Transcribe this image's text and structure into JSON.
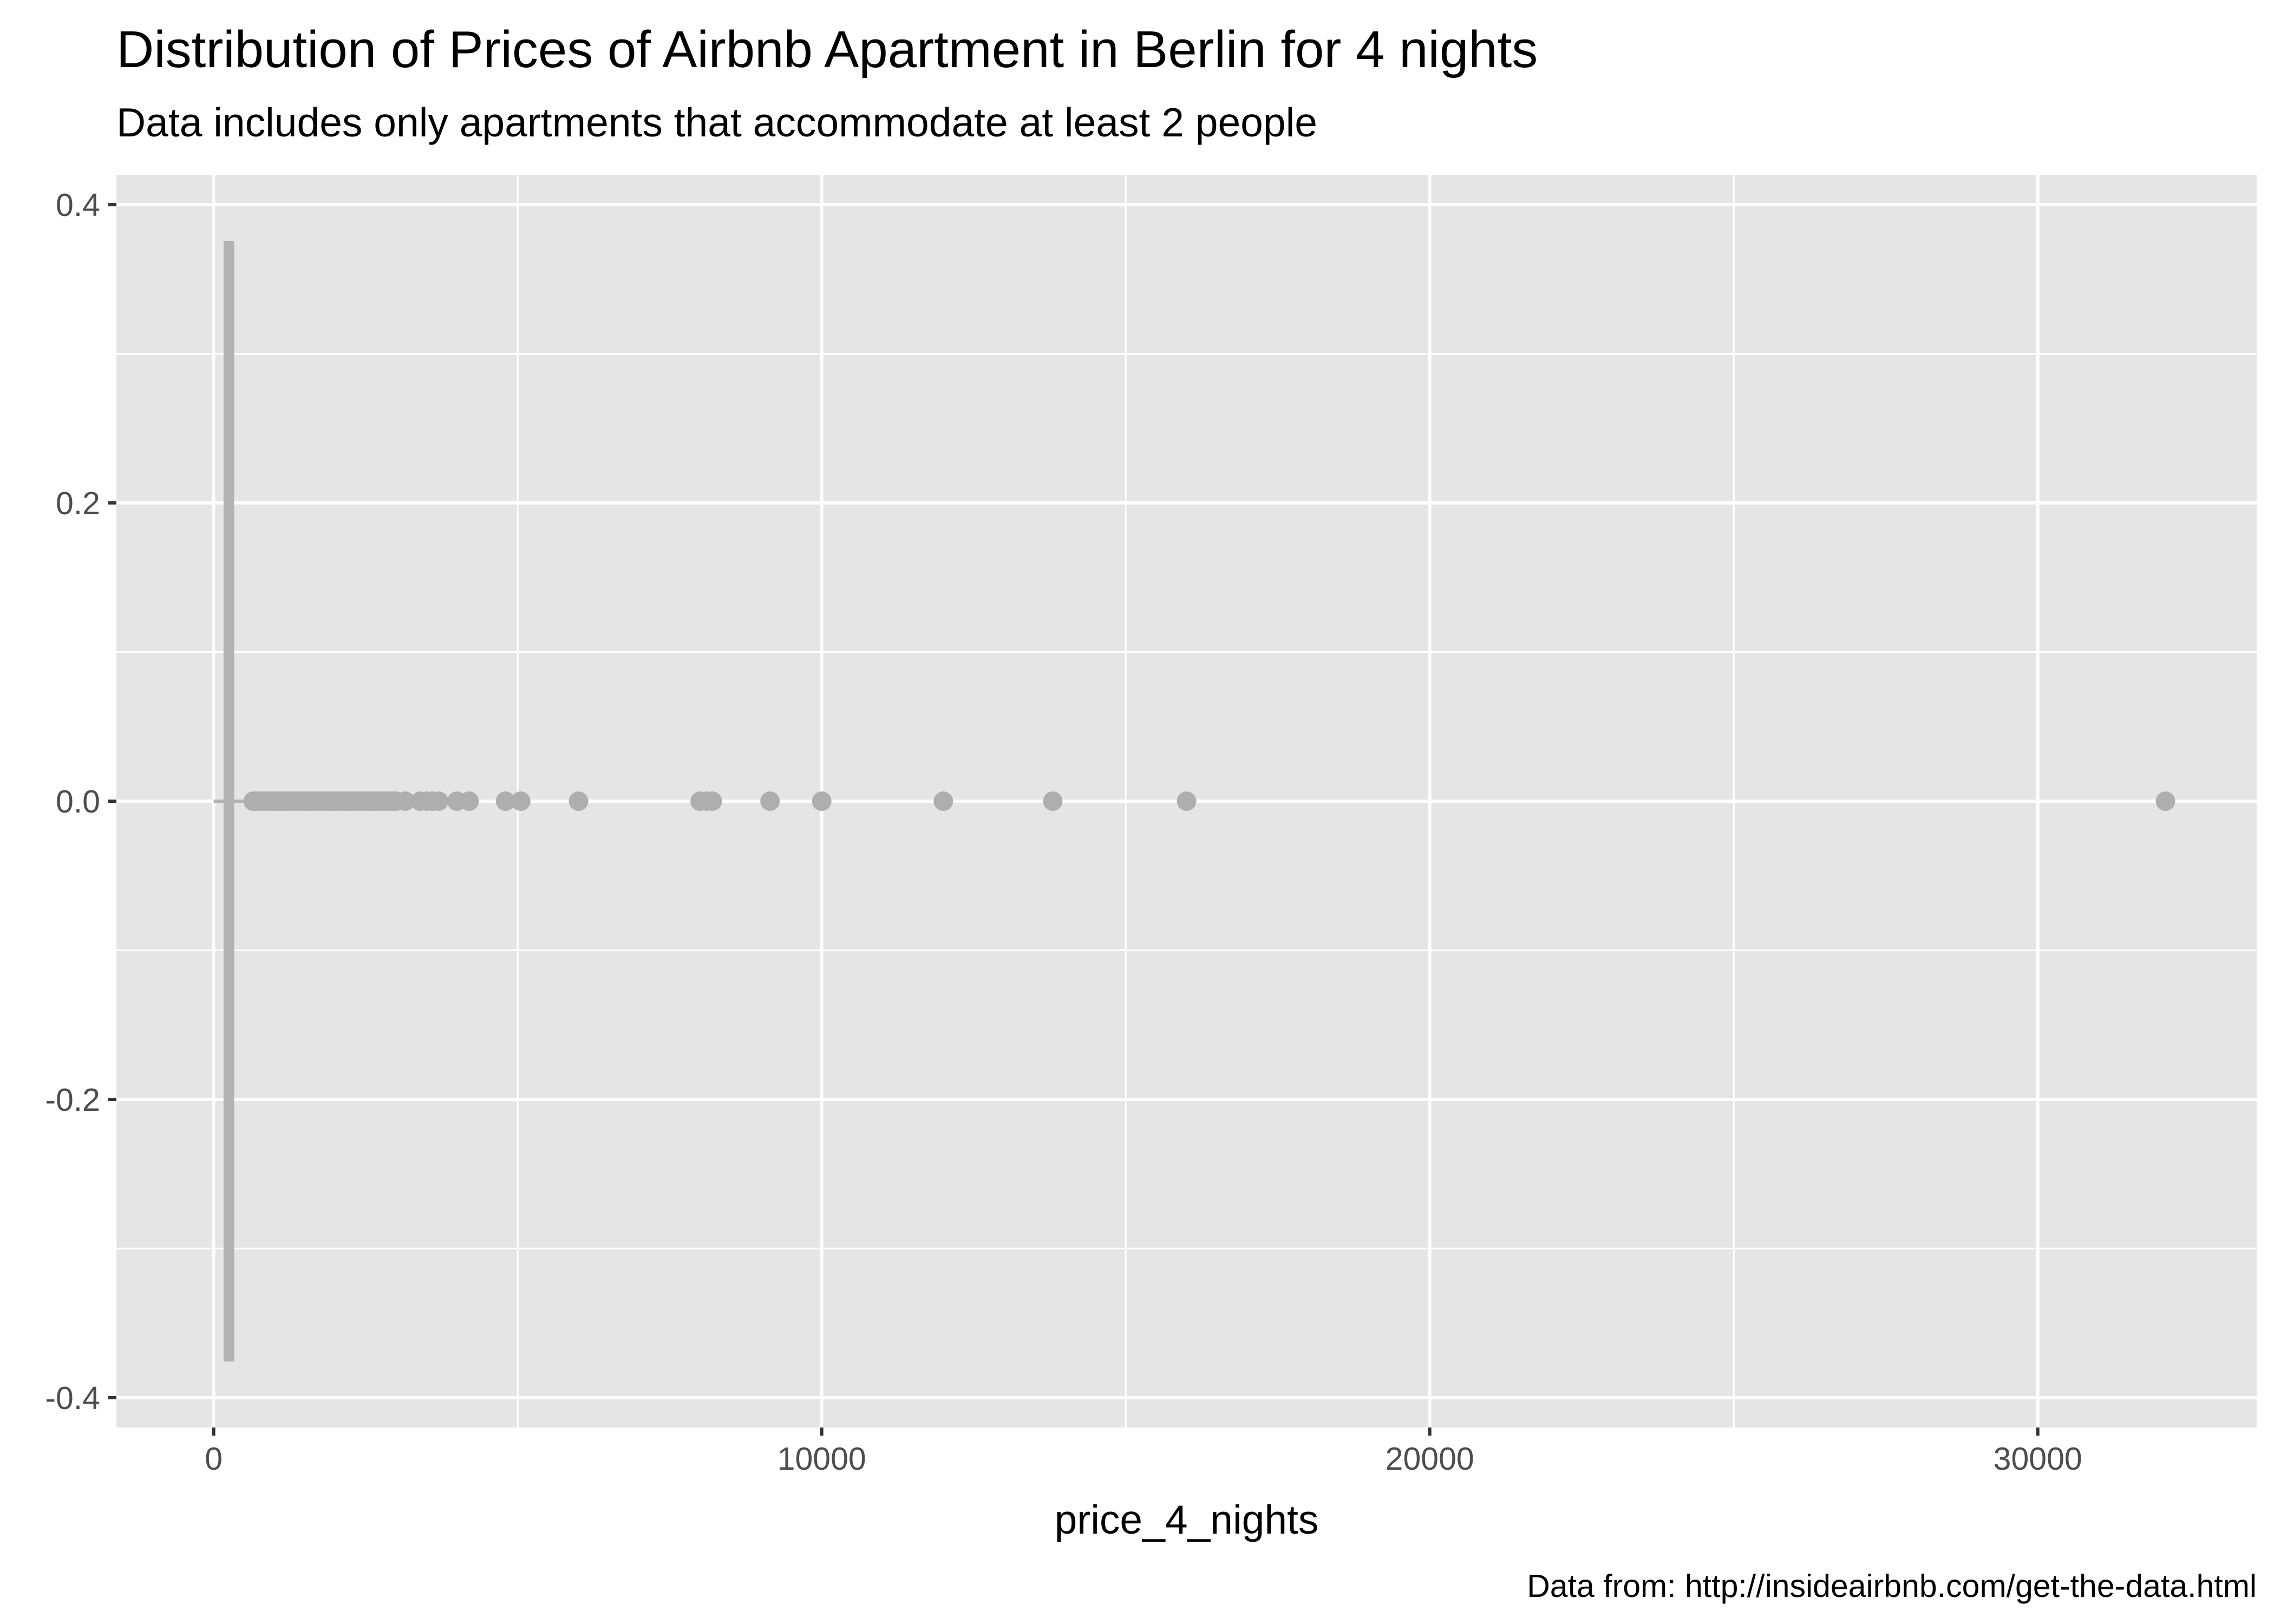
{
  "chart_data": {
    "type": "boxplot",
    "title": "Distribution of Prices of Airbnb Apartment in Berlin for 4 nights",
    "subtitle": "Data includes only apartments that accommodate at least 2 people",
    "caption": "Data from: http://insideairbnb.com/get-the-data.html",
    "xlabel": "price_4_nights",
    "ylabel": "",
    "xlim": [
      -1600,
      33600
    ],
    "ylim": [
      -0.42,
      0.42
    ],
    "x_ticks": [
      0,
      10000,
      20000,
      30000
    ],
    "x_tick_labels": [
      "0",
      "10000",
      "20000",
      "30000"
    ],
    "x_minor_ticks": [
      5000,
      15000,
      25000
    ],
    "y_ticks": [
      0.4,
      0.2,
      0.0,
      -0.2,
      -0.4
    ],
    "y_tick_labels": [
      "0.4",
      "0.2",
      "0.0",
      "-0.2",
      "-0.4"
    ],
    "y_minor_ticks": [
      0.3,
      0.1,
      -0.1,
      -0.3
    ],
    "grid": true,
    "box": {
      "y_center": 0.0,
      "half_width": 0.375,
      "q1": 180,
      "median": 240,
      "q3": 320,
      "whisker_low": 0,
      "whisker_high": 620
    },
    "outliers_x": [
      650,
      700,
      750,
      800,
      850,
      900,
      950,
      1000,
      1050,
      1100,
      1150,
      1200,
      1250,
      1300,
      1350,
      1400,
      1450,
      1500,
      1550,
      1600,
      1650,
      1700,
      1750,
      1800,
      1850,
      1900,
      1950,
      2000,
      2050,
      2100,
      2150,
      2200,
      2250,
      2300,
      2350,
      2400,
      2450,
      2500,
      2550,
      2600,
      2650,
      2700,
      2750,
      2800,
      2850,
      2900,
      2950,
      3000,
      3150,
      3400,
      3500,
      3600,
      3700,
      4000,
      4200,
      4800,
      5050,
      6000,
      8000,
      8100,
      8200,
      9150,
      10000,
      12000,
      13800,
      16000,
      32100
    ],
    "colors": {
      "panel": "#e5e5e5",
      "grid": "#ffffff",
      "box": "#b3b3b3",
      "points": "#aeaeae",
      "ticks": "#333333"
    }
  }
}
